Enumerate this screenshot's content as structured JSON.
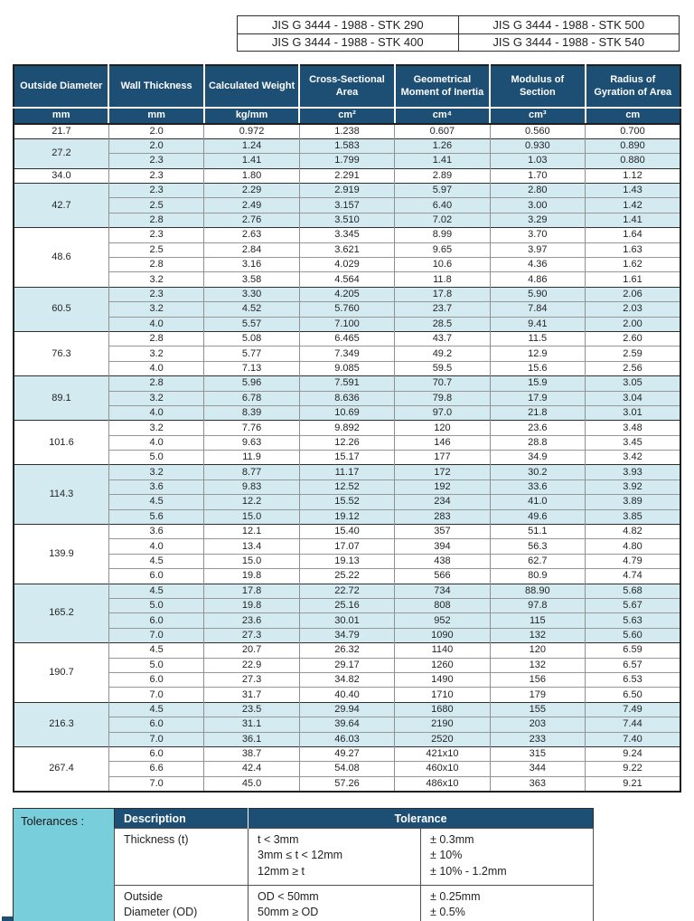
{
  "colors": {
    "header_navy": "#1d4e74",
    "row_light_blue": "#d4eaf1",
    "tolerances_cyan": "#79cedb"
  },
  "standards": {
    "items": [
      "JIS G 3444 - 1988 - STK 290",
      "JIS G 3444 - 1988 - STK 400",
      "JIS G 3444 - 1988 - STK 500",
      "JIS G 3444 - 1988 - STK 540"
    ]
  },
  "main_table": {
    "columns": [
      {
        "title": "Outside Diameter",
        "unit": "mm"
      },
      {
        "title": "Wall Thickness",
        "unit": "mm"
      },
      {
        "title": "Calculated Weight",
        "unit": "kg/mm"
      },
      {
        "title": "Cross-Sectional Area",
        "unit": "cm²"
      },
      {
        "title": "Geometrical Moment of Inertia",
        "unit": "cm⁴"
      },
      {
        "title": "Modulus of Section",
        "unit": "cm³"
      },
      {
        "title": "Radius of Gyration of Area",
        "unit": "cm"
      }
    ],
    "groups": [
      {
        "od": "21.7",
        "rows": [
          [
            "2.0",
            "0.972",
            "1.238",
            "0.607",
            "0.560",
            "0.700"
          ]
        ]
      },
      {
        "od": "27.2",
        "rows": [
          [
            "2.0",
            "1.24",
            "1.583",
            "1.26",
            "0.930",
            "0.890"
          ],
          [
            "2.3",
            "1.41",
            "1.799",
            "1.41",
            "1.03",
            "0.880"
          ]
        ]
      },
      {
        "od": "34.0",
        "rows": [
          [
            "2.3",
            "1.80",
            "2.291",
            "2.89",
            "1.70",
            "1.12"
          ]
        ]
      },
      {
        "od": "42.7",
        "rows": [
          [
            "2.3",
            "2.29",
            "2.919",
            "5.97",
            "2.80",
            "1.43"
          ],
          [
            "2.5",
            "2.49",
            "3.157",
            "6.40",
            "3.00",
            "1.42"
          ],
          [
            "2.8",
            "2.76",
            "3.510",
            "7.02",
            "3.29",
            "1.41"
          ]
        ]
      },
      {
        "od": "48.6",
        "rows": [
          [
            "2.3",
            "2.63",
            "3.345",
            "8.99",
            "3.70",
            "1.64"
          ],
          [
            "2.5",
            "2.84",
            "3.621",
            "9.65",
            "3.97",
            "1.63"
          ],
          [
            "2.8",
            "3.16",
            "4.029",
            "10.6",
            "4.36",
            "1.62"
          ],
          [
            "3.2",
            "3.58",
            "4.564",
            "11.8",
            "4.86",
            "1.61"
          ]
        ]
      },
      {
        "od": "60.5",
        "rows": [
          [
            "2.3",
            "3.30",
            "4.205",
            "17.8",
            "5.90",
            "2.06"
          ],
          [
            "3.2",
            "4.52",
            "5.760",
            "23.7",
            "7.84",
            "2.03"
          ],
          [
            "4.0",
            "5.57",
            "7.100",
            "28.5",
            "9.41",
            "2.00"
          ]
        ]
      },
      {
        "od": "76.3",
        "rows": [
          [
            "2.8",
            "5.08",
            "6.465",
            "43.7",
            "11.5",
            "2.60"
          ],
          [
            "3.2",
            "5.77",
            "7.349",
            "49.2",
            "12.9",
            "2.59"
          ],
          [
            "4.0",
            "7.13",
            "9.085",
            "59.5",
            "15.6",
            "2.56"
          ]
        ]
      },
      {
        "od": "89.1",
        "rows": [
          [
            "2.8",
            "5.96",
            "7.591",
            "70.7",
            "15.9",
            "3.05"
          ],
          [
            "3.2",
            "6.78",
            "8.636",
            "79.8",
            "17.9",
            "3.04"
          ],
          [
            "4.0",
            "8.39",
            "10.69",
            "97.0",
            "21.8",
            "3.01"
          ]
        ]
      },
      {
        "od": "101.6",
        "rows": [
          [
            "3.2",
            "7.76",
            "9.892",
            "120",
            "23.6",
            "3.48"
          ],
          [
            "4.0",
            "9.63",
            "12.26",
            "146",
            "28.8",
            "3.45"
          ],
          [
            "5.0",
            "11.9",
            "15.17",
            "177",
            "34.9",
            "3.42"
          ]
        ]
      },
      {
        "od": "114.3",
        "rows": [
          [
            "3.2",
            "8.77",
            "11.17",
            "172",
            "30.2",
            "3.93"
          ],
          [
            "3.6",
            "9.83",
            "12.52",
            "192",
            "33.6",
            "3.92"
          ],
          [
            "4.5",
            "12.2",
            "15.52",
            "234",
            "41.0",
            "3.89"
          ],
          [
            "5.6",
            "15.0",
            "19.12",
            "283",
            "49.6",
            "3.85"
          ]
        ]
      },
      {
        "od": "139.9",
        "rows": [
          [
            "3.6",
            "12.1",
            "15.40",
            "357",
            "51.1",
            "4.82"
          ],
          [
            "4.0",
            "13.4",
            "17.07",
            "394",
            "56.3",
            "4.80"
          ],
          [
            "4.5",
            "15.0",
            "19.13",
            "438",
            "62.7",
            "4.79"
          ],
          [
            "6.0",
            "19.8",
            "25.22",
            "566",
            "80.9",
            "4.74"
          ]
        ]
      },
      {
        "od": "165.2",
        "rows": [
          [
            "4.5",
            "17.8",
            "22.72",
            "734",
            "88.90",
            "5.68"
          ],
          [
            "5.0",
            "19.8",
            "25.16",
            "808",
            "97.8",
            "5.67"
          ],
          [
            "6.0",
            "23.6",
            "30.01",
            "952",
            "115",
            "5.63"
          ],
          [
            "7.0",
            "27.3",
            "34.79",
            "1090",
            "132",
            "5.60"
          ]
        ]
      },
      {
        "od": "190.7",
        "rows": [
          [
            "4.5",
            "20.7",
            "26.32",
            "1140",
            "120",
            "6.59"
          ],
          [
            "5.0",
            "22.9",
            "29.17",
            "1260",
            "132",
            "6.57"
          ],
          [
            "6.0",
            "27.3",
            "34.82",
            "1490",
            "156",
            "6.53"
          ],
          [
            "7.0",
            "31.7",
            "40.40",
            "1710",
            "179",
            "6.50"
          ]
        ]
      },
      {
        "od": "216.3",
        "rows": [
          [
            "4.5",
            "23.5",
            "29.94",
            "1680",
            "155",
            "7.49"
          ],
          [
            "6.0",
            "31.1",
            "39.64",
            "2190",
            "203",
            "7.44"
          ],
          [
            "7.0",
            "36.1",
            "46.03",
            "2520",
            "233",
            "7.40"
          ]
        ]
      },
      {
        "od": "267.4",
        "rows": [
          [
            "6.0",
            "38.7",
            "49.27",
            "421x10",
            "315",
            "9.24"
          ],
          [
            "6.6",
            "42.4",
            "54.08",
            "460x10",
            "344",
            "9.22"
          ],
          [
            "7.0",
            "45.0",
            "57.26",
            "486x10",
            "363",
            "9.21"
          ]
        ]
      }
    ]
  },
  "tolerances": {
    "label": "Tolerances :",
    "header": {
      "description": "Description",
      "tolerance": "Tolerance"
    },
    "rows": [
      {
        "description": "Thickness (t)",
        "conditions": [
          "t < 3mm",
          "3mm ≤ t < 12mm",
          "12mm ≥ t"
        ],
        "values": [
          "± 0.3mm",
          "± 10%",
          "± 10% - 1.2mm"
        ]
      },
      {
        "description": "Outside\nDiameter (OD)",
        "conditions": [
          "OD < 50mm",
          "50mm ≥ OD"
        ],
        "values": [
          "± 0.25mm",
          "± 0.5%"
        ]
      }
    ]
  }
}
